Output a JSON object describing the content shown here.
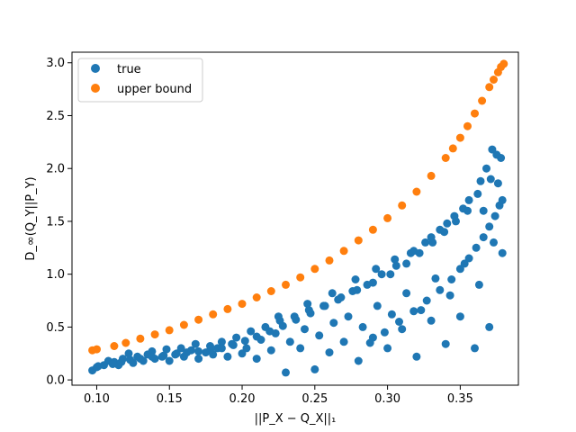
{
  "chart_data": {
    "type": "scatter",
    "xlabel": "||P_X − Q_X||₁",
    "ylabel": "D_∞(Q_Y||P_Y)",
    "xlim": [
      0.083,
      0.39
    ],
    "ylim": [
      -0.05,
      3.1
    ],
    "xticks": [
      0.1,
      0.15,
      0.2,
      0.25,
      0.3,
      0.35
    ],
    "xtick_labels": [
      "0.10",
      "0.15",
      "0.20",
      "0.25",
      "0.30",
      "0.35"
    ],
    "yticks": [
      0.0,
      0.5,
      1.0,
      1.5,
      2.0,
      2.5,
      3.0
    ],
    "ytick_labels": [
      "0.0",
      "0.5",
      "1.0",
      "1.5",
      "2.0",
      "2.5",
      "3.0"
    ],
    "grid": false,
    "legend_position": "top-left",
    "series": [
      {
        "name": "true",
        "color": "#1f77b4",
        "x": [
          0.097,
          0.101,
          0.108,
          0.112,
          0.115,
          0.118,
          0.122,
          0.125,
          0.128,
          0.132,
          0.135,
          0.138,
          0.14,
          0.145,
          0.148,
          0.15,
          0.155,
          0.158,
          0.16,
          0.165,
          0.168,
          0.17,
          0.175,
          0.178,
          0.18,
          0.183,
          0.186,
          0.19,
          0.193,
          0.196,
          0.2,
          0.203,
          0.206,
          0.21,
          0.213,
          0.216,
          0.22,
          0.223,
          0.226,
          0.23,
          0.233,
          0.236,
          0.24,
          0.243,
          0.246,
          0.25,
          0.253,
          0.256,
          0.26,
          0.263,
          0.266,
          0.27,
          0.273,
          0.276,
          0.28,
          0.283,
          0.286,
          0.29,
          0.293,
          0.296,
          0.3,
          0.303,
          0.306,
          0.31,
          0.313,
          0.316,
          0.32,
          0.323,
          0.326,
          0.33,
          0.333,
          0.336,
          0.34,
          0.343,
          0.346,
          0.35,
          0.353,
          0.356,
          0.36,
          0.363,
          0.366,
          0.37,
          0.373,
          0.376,
          0.379,
          0.225,
          0.245,
          0.262,
          0.278,
          0.292,
          0.305,
          0.318,
          0.33,
          0.341,
          0.352,
          0.362,
          0.371,
          0.378,
          0.288,
          0.298,
          0.308,
          0.318,
          0.327,
          0.336,
          0.344,
          0.35,
          0.356,
          0.361,
          0.366,
          0.37,
          0.374,
          0.377,
          0.372,
          0.368,
          0.375,
          0.364,
          0.379,
          0.355,
          0.347,
          0.339,
          0.331,
          0.322,
          0.313,
          0.302,
          0.29,
          0.279,
          0.268,
          0.257,
          0.247,
          0.237,
          0.228,
          0.219,
          0.21,
          0.202,
          0.194,
          0.186,
          0.178,
          0.17,
          0.162,
          0.154,
          0.146,
          0.138,
          0.13,
          0.123,
          0.117,
          0.111,
          0.105,
          0.1
        ],
        "y": [
          0.09,
          0.13,
          0.18,
          0.17,
          0.14,
          0.2,
          0.25,
          0.16,
          0.22,
          0.18,
          0.24,
          0.27,
          0.2,
          0.22,
          0.29,
          0.18,
          0.25,
          0.3,
          0.22,
          0.28,
          0.34,
          0.2,
          0.26,
          0.32,
          0.24,
          0.3,
          0.36,
          0.22,
          0.34,
          0.4,
          0.25,
          0.3,
          0.46,
          0.2,
          0.38,
          0.5,
          0.28,
          0.44,
          0.56,
          0.07,
          0.36,
          0.6,
          0.3,
          0.48,
          0.66,
          0.1,
          0.42,
          0.7,
          0.26,
          0.54,
          0.76,
          0.36,
          0.6,
          0.84,
          0.18,
          0.5,
          0.9,
          0.4,
          0.7,
          1.0,
          0.3,
          0.62,
          1.08,
          0.48,
          0.82,
          1.2,
          0.22,
          0.66,
          1.3,
          0.56,
          0.96,
          1.42,
          0.34,
          0.8,
          1.55,
          0.6,
          1.1,
          1.7,
          0.3,
          0.9,
          1.6,
          0.5,
          1.3,
          1.86,
          1.2,
          0.6,
          0.72,
          0.82,
          0.95,
          1.05,
          1.14,
          1.22,
          1.35,
          1.48,
          1.62,
          1.76,
          1.9,
          2.1,
          0.35,
          0.45,
          0.55,
          0.65,
          0.75,
          0.85,
          0.95,
          1.05,
          1.15,
          1.25,
          1.35,
          1.45,
          1.55,
          1.65,
          2.18,
          2.0,
          2.13,
          1.88,
          1.7,
          1.6,
          1.5,
          1.4,
          1.3,
          1.2,
          1.1,
          1.0,
          0.92,
          0.85,
          0.78,
          0.7,
          0.63,
          0.57,
          0.51,
          0.46,
          0.41,
          0.37,
          0.33,
          0.3,
          0.28,
          0.27,
          0.26,
          0.24,
          0.23,
          0.22,
          0.2,
          0.19,
          0.17,
          0.15,
          0.14,
          0.12
        ]
      },
      {
        "name": "upper bound",
        "color": "#ff7f0e",
        "x": [
          0.097,
          0.1,
          0.112,
          0.12,
          0.13,
          0.14,
          0.15,
          0.16,
          0.17,
          0.18,
          0.19,
          0.2,
          0.21,
          0.22,
          0.23,
          0.24,
          0.25,
          0.26,
          0.27,
          0.28,
          0.29,
          0.3,
          0.31,
          0.32,
          0.33,
          0.34,
          0.345,
          0.35,
          0.355,
          0.36,
          0.365,
          0.37,
          0.373,
          0.376,
          0.378,
          0.38
        ],
        "y": [
          0.28,
          0.29,
          0.32,
          0.35,
          0.39,
          0.43,
          0.47,
          0.52,
          0.57,
          0.62,
          0.67,
          0.72,
          0.78,
          0.84,
          0.9,
          0.97,
          1.05,
          1.13,
          1.22,
          1.32,
          1.42,
          1.53,
          1.65,
          1.78,
          1.93,
          2.1,
          2.19,
          2.29,
          2.4,
          2.52,
          2.64,
          2.77,
          2.84,
          2.91,
          2.96,
          2.99
        ]
      }
    ]
  }
}
